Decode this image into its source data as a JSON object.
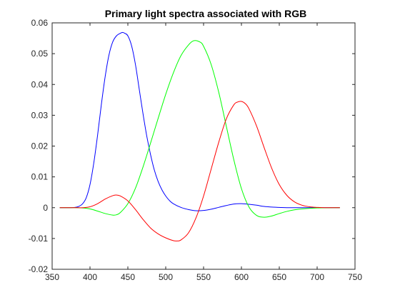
{
  "chart_data": {
    "type": "line",
    "title": "Primary light spectra associated with RGB",
    "xlabel": "",
    "ylabel": "",
    "xlim": [
      350,
      750
    ],
    "ylim": [
      -0.02,
      0.06
    ],
    "xticks": [
      350,
      400,
      450,
      500,
      550,
      600,
      650,
      700,
      750
    ],
    "yticks": [
      -0.02,
      -0.01,
      0,
      0.01,
      0.02,
      0.03,
      0.04,
      0.05,
      0.06
    ],
    "ytick_labels": [
      "-0.02",
      "-0.01",
      "0",
      "0.01",
      "0.02",
      "0.03",
      "0.04",
      "0.05",
      "0.06"
    ],
    "grid": false,
    "legend": "none",
    "axis_color": "#262626",
    "series": [
      {
        "color": "#0000ff",
        "x": [
          360,
          370,
          380,
          385,
          390,
          395,
          400,
          405,
          410,
          415,
          420,
          425,
          430,
          435,
          440,
          443,
          446,
          450,
          455,
          460,
          465,
          470,
          475,
          480,
          485,
          490,
          495,
          500,
          505,
          510,
          520,
          530,
          540,
          550,
          560,
          570,
          580,
          590,
          600,
          610,
          620,
          630,
          640,
          650,
          660,
          680,
          700,
          730
        ],
        "y": [
          0,
          0,
          0.0001,
          0.0004,
          0.0012,
          0.0032,
          0.0075,
          0.0145,
          0.0235,
          0.0335,
          0.0425,
          0.0495,
          0.0538,
          0.0558,
          0.0566,
          0.0569,
          0.0566,
          0.0558,
          0.0525,
          0.0465,
          0.0385,
          0.0305,
          0.0232,
          0.0172,
          0.0122,
          0.0085,
          0.0058,
          0.0038,
          0.0023,
          0.0013,
          0.0001,
          -0.0006,
          -0.001,
          -0.0009,
          -0.0005,
          0.0001,
          0.0007,
          0.0012,
          0.0013,
          0.0011,
          0.0008,
          0.0004,
          0.0002,
          0.0001,
          0,
          0,
          0,
          0
        ]
      },
      {
        "color": "#00ff00",
        "x": [
          360,
          380,
          390,
          400,
          410,
          420,
          430,
          435,
          440,
          450,
          460,
          470,
          480,
          490,
          500,
          510,
          520,
          530,
          537,
          545,
          550,
          560,
          570,
          580,
          590,
          600,
          610,
          620,
          630,
          640,
          650,
          660,
          670,
          680,
          700,
          730
        ],
        "y": [
          0,
          0,
          -0.0001,
          -0.0004,
          -0.0011,
          -0.0019,
          -0.0024,
          -0.0023,
          -0.0016,
          0.0013,
          0.0063,
          0.0132,
          0.021,
          0.029,
          0.0368,
          0.0437,
          0.0493,
          0.0528,
          0.0542,
          0.0538,
          0.0524,
          0.0465,
          0.0375,
          0.0265,
          0.0155,
          0.0062,
          0.0002,
          -0.0025,
          -0.0031,
          -0.0027,
          -0.0019,
          -0.0012,
          -0.0007,
          -0.0004,
          -0.0001,
          0
        ]
      },
      {
        "color": "#ff0000",
        "x": [
          360,
          380,
          390,
          400,
          410,
          420,
          430,
          435,
          440,
          450,
          460,
          470,
          480,
          490,
          500,
          510,
          515,
          520,
          530,
          540,
          550,
          560,
          570,
          580,
          590,
          595,
          600,
          605,
          610,
          620,
          630,
          640,
          650,
          660,
          670,
          680,
          690,
          700,
          710,
          730
        ],
        "y": [
          0,
          0,
          0,
          0.0003,
          0.0013,
          0.0028,
          0.0039,
          0.0041,
          0.0038,
          0.0022,
          -0.0006,
          -0.0038,
          -0.0066,
          -0.0085,
          -0.0098,
          -0.0107,
          -0.0108,
          -0.0105,
          -0.0082,
          -0.0033,
          0.0038,
          0.0125,
          0.0212,
          0.0288,
          0.0334,
          0.0343,
          0.0345,
          0.0338,
          0.0321,
          0.0265,
          0.0195,
          0.0128,
          0.0075,
          0.004,
          0.0019,
          0.0008,
          0.0003,
          0.0001,
          0,
          0
        ]
      }
    ]
  }
}
